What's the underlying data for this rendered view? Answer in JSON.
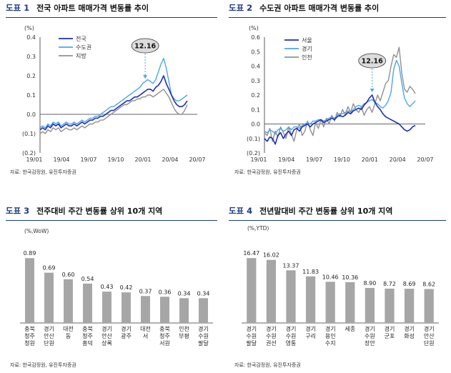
{
  "panels": [
    {
      "fig": "도표 1",
      "title": "전국 아파트 매매가격 변동률 추이",
      "unit": "(%)",
      "source": "자료: 한국감정원, 유진투자증권",
      "annotation": "12.16"
    },
    {
      "fig": "도표 2",
      "title": "수도권 아파트 매매가격 변동률 추이",
      "unit": "(%)",
      "source": "자료: 한국감정원, 유진투자증권",
      "annotation": "12.16"
    },
    {
      "fig": "도표 3",
      "title": "전주대비 주간 변동률 상위 10개 지역",
      "unit": "(%,WoW)",
      "source": "자료: 한국감정원, 유진투자증권"
    },
    {
      "fig": "도표 4",
      "title": "전년말대비 주간 변동률 상위 10개 지역",
      "unit": "(%,YTD)",
      "source": "자료: 한국감정원, 유진투자증권"
    }
  ],
  "chart_data": [
    {
      "type": "line",
      "x_ticks": [
        "19/01",
        "19/04",
        "19/07",
        "19/10",
        "20/01",
        "20/04",
        "20/07"
      ],
      "ylim": [
        -0.2,
        0.4
      ],
      "y_ticks": [
        "(0.2)",
        "(0.1)",
        "0.0",
        "0.1",
        "0.2",
        "0.3",
        "0.4"
      ],
      "legend_position": "top-left",
      "series": [
        {
          "name": "전국",
          "color": "#1e2fb5",
          "values": [
            -0.08,
            -0.07,
            -0.08,
            -0.06,
            -0.07,
            -0.05,
            -0.06,
            -0.05,
            -0.07,
            -0.06,
            -0.05,
            -0.06,
            -0.06,
            -0.05,
            -0.06,
            -0.05,
            -0.04,
            -0.05,
            -0.04,
            -0.03,
            -0.03,
            -0.02,
            -0.02,
            -0.01,
            -0.01,
            0.0,
            0.01,
            0.02,
            0.02,
            0.03,
            0.04,
            0.05,
            0.06,
            0.07,
            0.07,
            0.08,
            0.09,
            0.09,
            0.1,
            0.11,
            0.12,
            0.13,
            0.13,
            0.12,
            0.14,
            0.15,
            0.17,
            0.2,
            0.16,
            0.13,
            0.1,
            0.07,
            0.05,
            0.04,
            0.04,
            0.05,
            0.07
          ]
        },
        {
          "name": "수도권",
          "color": "#4ea6e6",
          "values": [
            -0.07,
            -0.06,
            -0.07,
            -0.05,
            -0.06,
            -0.04,
            -0.05,
            -0.04,
            -0.06,
            -0.05,
            -0.04,
            -0.05,
            -0.05,
            -0.04,
            -0.05,
            -0.04,
            -0.03,
            -0.04,
            -0.03,
            -0.02,
            -0.02,
            -0.01,
            -0.01,
            0.0,
            0.01,
            0.02,
            0.03,
            0.04,
            0.04,
            0.05,
            0.06,
            0.07,
            0.08,
            0.09,
            0.1,
            0.11,
            0.12,
            0.13,
            0.14,
            0.16,
            0.17,
            0.18,
            0.17,
            0.16,
            0.18,
            0.22,
            0.26,
            0.29,
            0.24,
            0.17,
            0.1,
            0.08,
            0.07,
            0.07,
            0.08,
            0.09,
            0.1
          ]
        },
        {
          "name": "지방",
          "color": "#909090",
          "values": [
            -0.1,
            -0.09,
            -0.1,
            -0.08,
            -0.09,
            -0.07,
            -0.08,
            -0.07,
            -0.09,
            -0.08,
            -0.07,
            -0.08,
            -0.08,
            -0.07,
            -0.08,
            -0.07,
            -0.06,
            -0.07,
            -0.06,
            -0.05,
            -0.05,
            -0.04,
            -0.04,
            -0.03,
            -0.03,
            -0.02,
            -0.01,
            0.0,
            0.01,
            0.02,
            0.03,
            0.04,
            0.05,
            0.05,
            0.06,
            0.07,
            0.07,
            0.08,
            0.08,
            0.09,
            0.09,
            0.1,
            0.1,
            0.09,
            0.1,
            0.11,
            0.12,
            0.13,
            0.11,
            0.09,
            0.06,
            0.03,
            0.01,
            0.0,
            0.0,
            0.02,
            0.05
          ]
        }
      ],
      "annotation": {
        "label": "12.16",
        "x_index": 40
      }
    },
    {
      "type": "line",
      "x_ticks": [
        "19/01",
        "19/04",
        "19/07",
        "19/10",
        "20/01",
        "20/04",
        "20/07"
      ],
      "ylim": [
        -0.2,
        0.6
      ],
      "y_ticks": [
        "(0.2)",
        "(0.1)",
        "0.0",
        "0.1",
        "0.2",
        "0.3",
        "0.4",
        "0.5",
        "0.6"
      ],
      "legend_position": "top-left",
      "series": [
        {
          "name": "서울",
          "color": "#1e2fb5",
          "values": [
            -0.1,
            -0.12,
            -0.09,
            -0.1,
            -0.14,
            -0.08,
            -0.06,
            -0.1,
            -0.07,
            -0.05,
            -0.08,
            -0.04,
            -0.03,
            -0.05,
            -0.02,
            -0.01,
            0.0,
            -0.02,
            0.0,
            0.01,
            0.02,
            0.03,
            0.01,
            0.02,
            0.03,
            0.04,
            0.03,
            0.05,
            0.06,
            0.05,
            0.06,
            0.08,
            0.07,
            0.09,
            0.1,
            0.11,
            0.1,
            0.13,
            0.15,
            0.18,
            0.2,
            0.15,
            0.12,
            0.1,
            0.07,
            0.05,
            0.04,
            0.03,
            0.02,
            0.01,
            0.0,
            -0.02,
            -0.04,
            -0.05,
            -0.04,
            -0.02,
            -0.01
          ]
        },
        {
          "name": "경기",
          "color": "#4ea6e6",
          "values": [
            -0.05,
            -0.06,
            -0.04,
            -0.05,
            -0.07,
            -0.04,
            -0.03,
            -0.05,
            -0.04,
            -0.02,
            -0.04,
            -0.02,
            -0.02,
            -0.03,
            -0.01,
            0.0,
            0.01,
            0.0,
            0.02,
            0.02,
            0.03,
            0.03,
            0.02,
            0.03,
            0.04,
            0.05,
            0.04,
            0.06,
            0.07,
            0.07,
            0.08,
            0.09,
            0.08,
            0.1,
            0.12,
            0.13,
            0.12,
            0.14,
            0.15,
            0.16,
            0.17,
            0.15,
            0.14,
            0.12,
            0.11,
            0.13,
            0.16,
            0.22,
            0.38,
            0.44,
            0.4,
            0.28,
            0.18,
            0.14,
            0.12,
            0.14,
            0.16
          ]
        },
        {
          "name": "인천",
          "color": "#909090",
          "values": [
            -0.06,
            -0.08,
            -0.03,
            -0.12,
            -0.05,
            -0.09,
            -0.02,
            -0.06,
            -0.1,
            -0.02,
            -0.07,
            -0.12,
            -0.04,
            0.0,
            -0.08,
            -0.05,
            0.02,
            -0.04,
            -0.08,
            0.01,
            -0.03,
            0.03,
            -0.02,
            0.04,
            0.0,
            0.06,
            0.02,
            0.08,
            0.05,
            0.1,
            0.06,
            0.12,
            0.08,
            0.14,
            0.1,
            0.08,
            0.12,
            0.06,
            0.1,
            0.12,
            0.08,
            0.14,
            0.2,
            0.16,
            0.22,
            0.28,
            0.3,
            0.4,
            0.48,
            0.46,
            0.53,
            0.35,
            0.24,
            0.22,
            0.26,
            0.24,
            0.21
          ]
        }
      ],
      "annotation": {
        "label": "12.16",
        "x_index": 40
      }
    },
    {
      "type": "bar",
      "color": "#a6a6a6",
      "categories": [
        "충북\n청주\n청원",
        "경기\n안산\n단원",
        "대전\n동",
        "충북\n청주\n흥덕",
        "경기\n안산\n상록",
        "경기\n광주",
        "대전\n서",
        "충북\n청주\n서원",
        "인천\n부평",
        "경기\n수원\n팔달"
      ],
      "values": [
        0.89,
        0.69,
        0.6,
        0.54,
        0.43,
        0.42,
        0.37,
        0.36,
        0.34,
        0.34
      ],
      "value_labels": [
        "0.89",
        "0.69",
        "0.60",
        "0.54",
        "0.43",
        "0.42",
        "0.37",
        "0.36",
        "0.34",
        "0.34"
      ],
      "ylim": [
        0,
        1.0
      ]
    },
    {
      "type": "bar",
      "color": "#a6a6a6",
      "categories": [
        "경기\n수원\n팔달",
        "경기\n수원\n권선",
        "경기\n수원\n영통",
        "경기\n구리",
        "경기\n용인\n수지",
        "세종",
        "경기\n수원\n장안",
        "경기\n군포",
        "경기\n화성",
        "경기\n안산\n단원"
      ],
      "values": [
        16.47,
        16.02,
        13.37,
        11.83,
        10.46,
        10.36,
        8.9,
        8.72,
        8.69,
        8.62
      ],
      "value_labels": [
        "16.47",
        "16.02",
        "13.37",
        "11.83",
        "10.46",
        "10.36",
        "8.90",
        "8.72",
        "8.69",
        "8.62"
      ],
      "ylim": [
        0,
        18.5
      ]
    }
  ]
}
